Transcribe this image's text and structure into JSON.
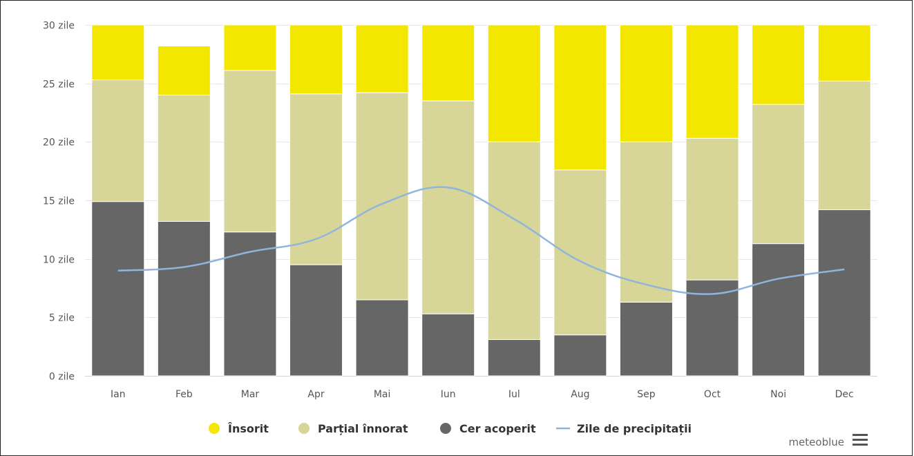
{
  "chart_data": {
    "type": "bar",
    "stacked": true,
    "categories": [
      "Ian",
      "Feb",
      "Mar",
      "Apr",
      "Mai",
      "Iun",
      "Iul",
      "Aug",
      "Sep",
      "Oct",
      "Noi",
      "Dec"
    ],
    "series": [
      {
        "name": "Cer acoperit",
        "color": "#666666",
        "values": [
          14.9,
          13.2,
          12.3,
          9.5,
          6.5,
          5.3,
          3.1,
          3.5,
          6.3,
          8.2,
          11.3,
          14.2
        ]
      },
      {
        "name": "Parțial înnorat",
        "color": "#d7d597",
        "values": [
          10.4,
          10.8,
          13.8,
          14.6,
          17.7,
          18.2,
          16.9,
          14.1,
          13.7,
          12.1,
          11.9,
          11.0
        ]
      },
      {
        "name": "Însorit",
        "color": "#f3e700",
        "values": [
          4.7,
          4.2,
          3.9,
          5.9,
          5.8,
          6.5,
          10.0,
          12.4,
          10.0,
          9.7,
          6.8,
          4.8
        ]
      }
    ],
    "line_series": {
      "name": "Zile de precipitații",
      "color": "#90b5dd",
      "values": [
        9.0,
        9.3,
        10.6,
        11.7,
        14.7,
        16.1,
        13.4,
        9.8,
        7.8,
        7.0,
        8.3,
        9.1
      ]
    },
    "ylim": [
      0,
      30
    ],
    "yticks": [
      {
        "value": 0,
        "label": "0 zile"
      },
      {
        "value": 5,
        "label": "5 zile"
      },
      {
        "value": 10,
        "label": "10 zile"
      },
      {
        "value": 15,
        "label": "15 zile"
      },
      {
        "value": 20,
        "label": "20 zile"
      },
      {
        "value": 25,
        "label": "25 zile"
      },
      {
        "value": 30,
        "label": "30 zile"
      }
    ],
    "grid": true,
    "legend_position": "bottom-center",
    "legend": [
      {
        "label": "Însorit",
        "color": "#f3e700",
        "icon": "circle"
      },
      {
        "label": "Parțial înnorat",
        "color": "#d7d597",
        "icon": "circle"
      },
      {
        "label": "Cer acoperit",
        "color": "#666666",
        "icon": "circle"
      },
      {
        "label": "Zile de precipitații",
        "color": "#90b5dd",
        "icon": "line"
      }
    ],
    "credits": "meteoblue",
    "menu_icon": "hamburger-menu-icon"
  }
}
